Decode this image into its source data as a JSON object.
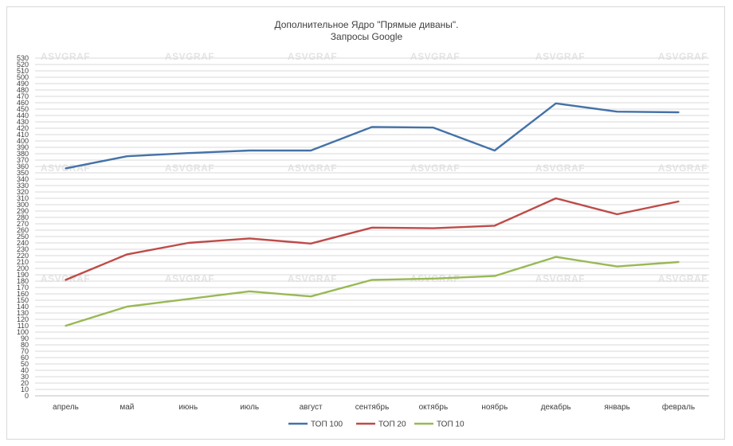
{
  "chart_data": {
    "type": "line",
    "title": "Дополнительное Ядро \"Прямые диваны\".",
    "subtitle": "Запросы Google",
    "xlabel": "",
    "ylabel": "",
    "categories": [
      "апрель",
      "май",
      "июнь",
      "июль",
      "август",
      "сентябрь",
      "октябрь",
      "ноябрь",
      "декабрь",
      "январь",
      "февраль"
    ],
    "ylim": [
      0,
      530
    ],
    "ytick_step": 10,
    "grid": true,
    "legend_position": "bottom",
    "watermark": "ASVGRAF",
    "series": [
      {
        "name": "ТОП 100",
        "color": "#4472a8",
        "values": [
          357,
          376,
          381,
          385,
          385,
          422,
          421,
          385,
          459,
          446,
          445
        ]
      },
      {
        "name": "ТОП 20",
        "color": "#be4b48",
        "values": [
          182,
          222,
          240,
          247,
          239,
          264,
          263,
          267,
          310,
          285,
          305
        ]
      },
      {
        "name": "ТОП 10",
        "color": "#98b954",
        "values": [
          110,
          140,
          152,
          164,
          156,
          182,
          184,
          188,
          218,
          203,
          210
        ]
      }
    ]
  }
}
